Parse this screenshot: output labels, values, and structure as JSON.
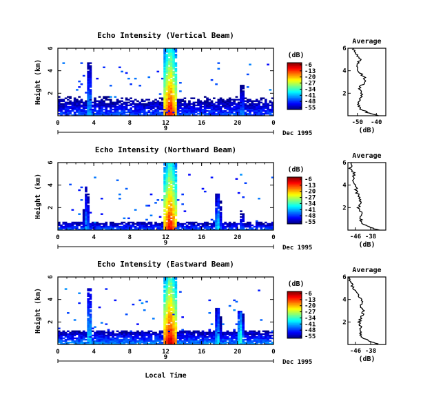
{
  "figure": {
    "x_axis_label": "Local Time",
    "date_label": "Dec 1995",
    "day_label": "9",
    "units_label": "(dB)",
    "average_title": "Average",
    "average_xlabel": "(dB)"
  },
  "chart_data": [
    {
      "type": "heatmap",
      "title": "Echo Intensity (Vertical Beam)",
      "ylabel": "Height (km)",
      "xlabel": "Local Time",
      "x_ticks": [
        "0",
        "4",
        "8",
        "12",
        "16",
        "20",
        "0"
      ],
      "y_ticks": [
        "2",
        "4",
        "6"
      ],
      "xlim": [
        0,
        24
      ],
      "ylim": [
        0,
        6
      ],
      "colorbar": {
        "label": "(dB)",
        "ticks": [
          "-6",
          "-13",
          "-20",
          "-27",
          "-34",
          "-41",
          "-48",
          "-55"
        ],
        "range": [
          -55,
          -6
        ]
      },
      "features": [
        {
          "kind": "surface_layer",
          "top_km": 1.7,
          "level_db": -45
        },
        {
          "kind": "plume",
          "hour": 3.5,
          "top_km": 4.8,
          "level_db": -36
        },
        {
          "kind": "plume",
          "hour": 12.5,
          "top_km": 6.0,
          "level_db": -10
        },
        {
          "kind": "plume",
          "hour": 20.5,
          "top_km": 2.8,
          "level_db": -38
        }
      ],
      "average": {
        "xlim": [
          -55,
          -35
        ],
        "x_ticks": [
          "-50",
          "-40"
        ],
        "y_ticks": [
          "2",
          "4",
          "6"
        ],
        "height_km": [
          0.0,
          0.3,
          0.6,
          1.0,
          1.5,
          2.0,
          2.5,
          3.0,
          3.5,
          4.0,
          4.5,
          5.0,
          5.5,
          6.0
        ],
        "db": [
          -38,
          -45,
          -48,
          -49.5,
          -48.5,
          -47.5,
          -49,
          -45.5,
          -46.5,
          -50.5,
          -50.5,
          -48.5,
          -51,
          -52
        ]
      }
    },
    {
      "type": "heatmap",
      "title": "Echo Intensity (Northward Beam)",
      "ylabel": "Height (km)",
      "xlabel": "Local Time",
      "x_ticks": [
        "0",
        "4",
        "8",
        "12",
        "16",
        "20",
        "0"
      ],
      "y_ticks": [
        "2",
        "4",
        "6"
      ],
      "xlim": [
        0,
        24
      ],
      "ylim": [
        0,
        6
      ],
      "colorbar": {
        "label": "(dB)",
        "ticks": [
          "-6",
          "-13",
          "-20",
          "-27",
          "-34",
          "-41",
          "-48",
          "-55"
        ],
        "range": [
          -55,
          -6
        ]
      },
      "features": [
        {
          "kind": "surface_layer",
          "top_km": 0.8,
          "level_db": -44
        },
        {
          "kind": "plume",
          "hour": 3.2,
          "top_km": 4.0,
          "level_db": -38
        },
        {
          "kind": "plume",
          "hour": 12.5,
          "top_km": 6.0,
          "level_db": -10
        },
        {
          "kind": "plume",
          "hour": 17.8,
          "top_km": 3.2,
          "level_db": -34
        },
        {
          "kind": "plume",
          "hour": 20.5,
          "top_km": 2.0,
          "level_db": -40
        }
      ],
      "average": {
        "xlim": [
          -50,
          -30
        ],
        "x_ticks": [
          "-46",
          "-38"
        ],
        "y_ticks": [
          "2",
          "4",
          "6"
        ],
        "height_km": [
          0.0,
          0.3,
          0.6,
          1.0,
          1.5,
          2.0,
          2.5,
          3.0,
          3.5,
          4.0,
          4.5,
          5.0,
          5.5,
          6.0
        ],
        "db": [
          -34,
          -39,
          -42,
          -43.5,
          -43,
          -44.5,
          -43.5,
          -44,
          -46,
          -45.5,
          -47.5,
          -46.5,
          -49,
          -48
        ]
      }
    },
    {
      "type": "heatmap",
      "title": "Echo Intensity (Eastward Beam)",
      "ylabel": "Height (km)",
      "xlabel": "Local Time",
      "x_ticks": [
        "0",
        "4",
        "8",
        "12",
        "16",
        "20",
        "0"
      ],
      "y_ticks": [
        "2",
        "4",
        "6"
      ],
      "xlim": [
        0,
        24
      ],
      "ylim": [
        0,
        6
      ],
      "colorbar": {
        "label": "(dB)",
        "ticks": [
          "-6",
          "-13",
          "-20",
          "-27",
          "-34",
          "-41",
          "-48",
          "-55"
        ],
        "range": [
          -55,
          -6
        ]
      },
      "features": [
        {
          "kind": "surface_layer",
          "top_km": 1.2,
          "level_db": -42
        },
        {
          "kind": "plume",
          "hour": 3.5,
          "top_km": 5.0,
          "level_db": -34
        },
        {
          "kind": "plume",
          "hour": 12.5,
          "top_km": 6.0,
          "level_db": -8
        },
        {
          "kind": "plume",
          "hour": 17.8,
          "top_km": 3.3,
          "level_db": -34
        },
        {
          "kind": "plume",
          "hour": 20.3,
          "top_km": 3.0,
          "level_db": -30
        }
      ],
      "average": {
        "xlim": [
          -50,
          -30
        ],
        "x_ticks": [
          "-46",
          "-38"
        ],
        "y_ticks": [
          "2",
          "4",
          "6"
        ],
        "height_km": [
          0.0,
          0.3,
          0.6,
          1.0,
          1.5,
          2.0,
          2.5,
          3.0,
          3.5,
          4.0,
          4.5,
          5.0,
          5.5,
          6.0
        ],
        "db": [
          -34,
          -39,
          -42,
          -43.5,
          -43,
          -44,
          -42.5,
          -42,
          -43,
          -42.5,
          -45.5,
          -47,
          -48.5,
          -49
        ]
      }
    }
  ]
}
